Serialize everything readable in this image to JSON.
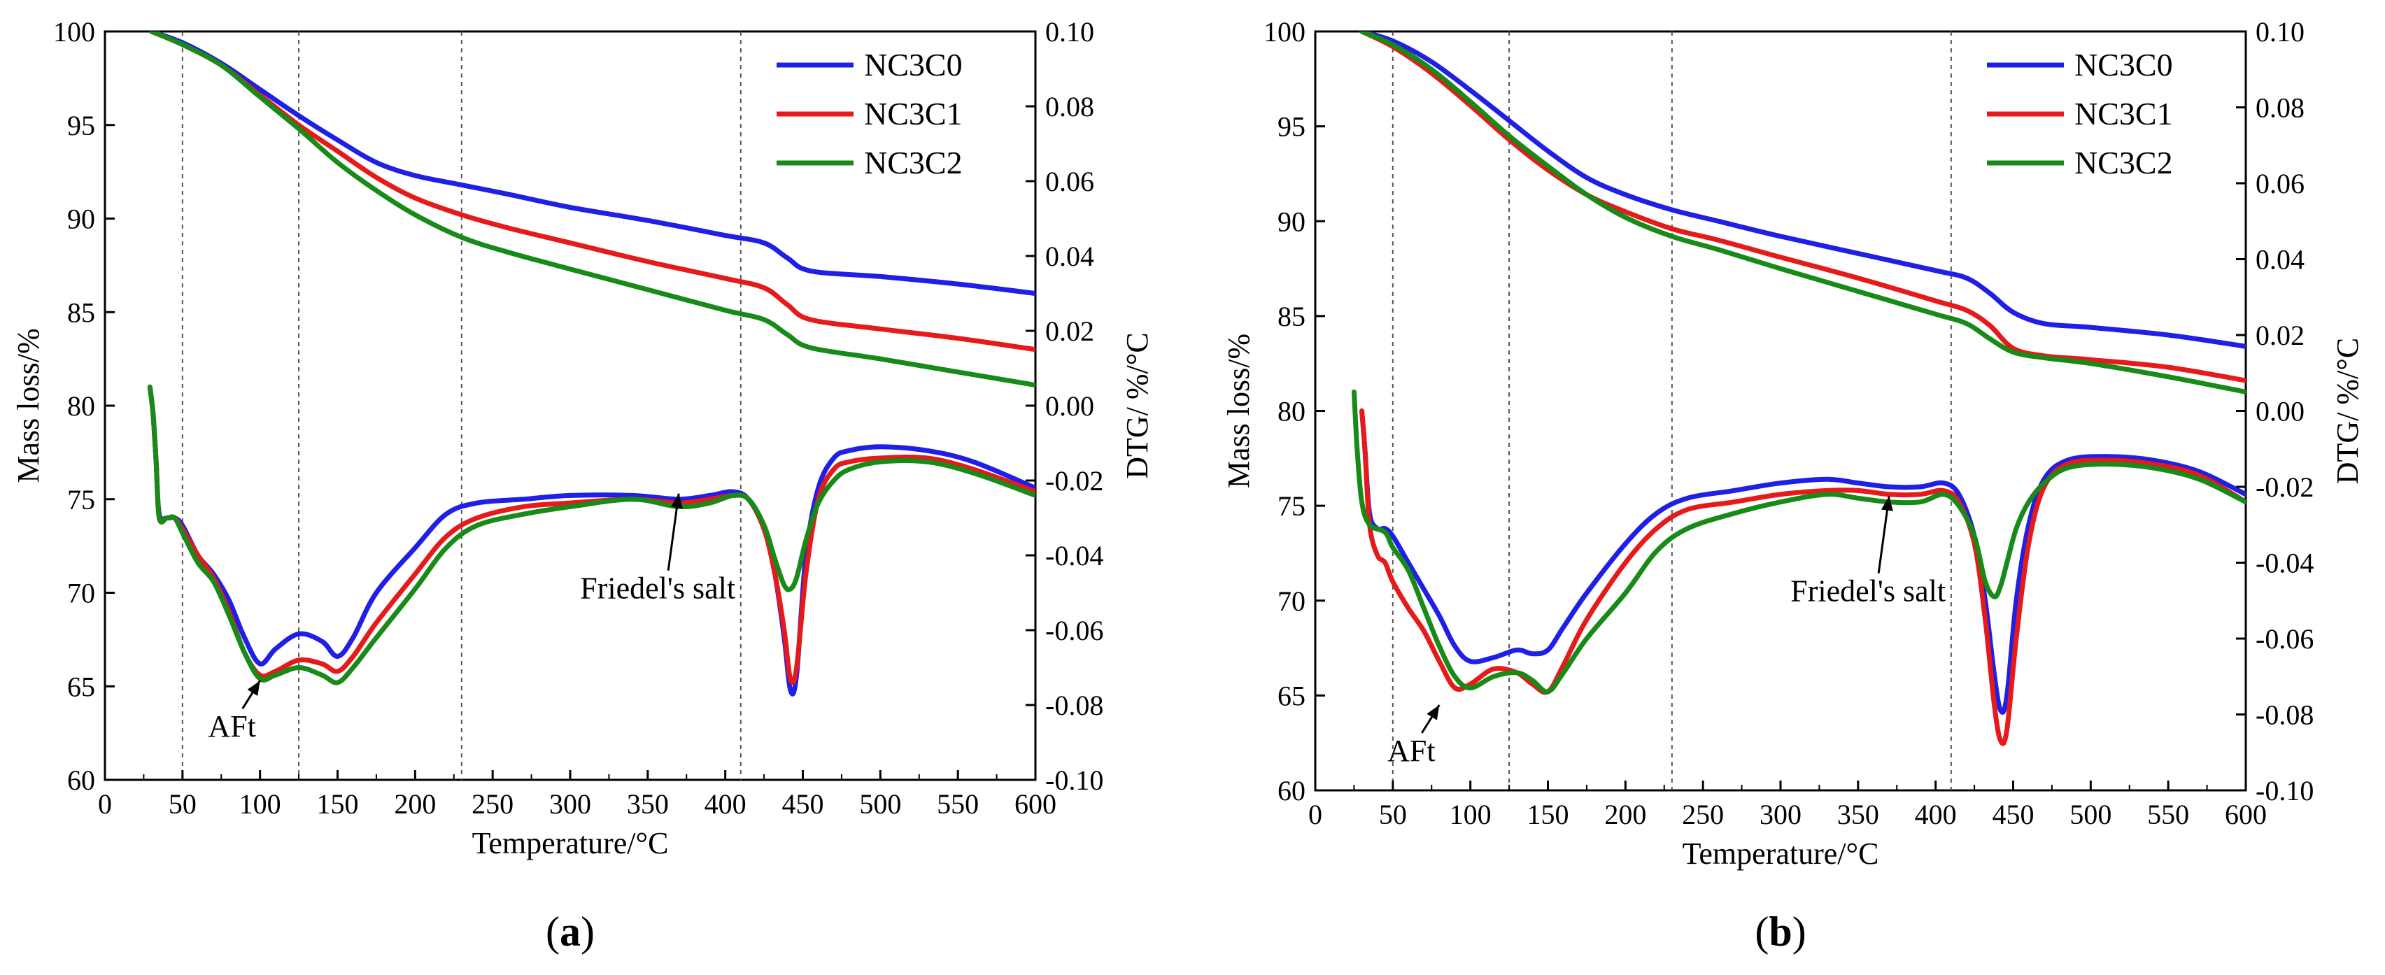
{
  "chart_data": [
    {
      "type": "line",
      "panel_label": "a",
      "xlabel": "Temperature/°C",
      "ylabel": "Mass loss/%",
      "y2label": "DTG/ %/°C",
      "xlim": [
        0,
        600
      ],
      "ylim": [
        60,
        100
      ],
      "y2lim": [
        -0.1,
        0.1
      ],
      "xticks": [
        "0",
        "50",
        "100",
        "150",
        "200",
        "250",
        "300",
        "350",
        "400",
        "450",
        "500",
        "550",
        "600"
      ],
      "yticks": [
        "60",
        "65",
        "70",
        "75",
        "80",
        "85",
        "90",
        "95",
        "100"
      ],
      "y2ticks": [
        "-0.10",
        "-0.08",
        "-0.06",
        "-0.04",
        "-0.02",
        "0.00",
        "0.02",
        "0.04",
        "0.06",
        "0.08",
        "0.10"
      ],
      "vlines": [
        50,
        125,
        230,
        410
      ],
      "legend": {
        "placement": "top-right",
        "entries": [
          "NC3C0",
          "NC3C1",
          "NC3C2"
        ]
      },
      "annotations": [
        {
          "text": "AFt",
          "x": 100,
          "y": 65.3
        },
        {
          "text": "Friedel's salt",
          "x": 370,
          "y": 75.3
        }
      ],
      "series": [
        {
          "name": "NC3C0",
          "color": "#1f1fe6",
          "axis": "mass",
          "x": [
            30,
            50,
            75,
            100,
            125,
            150,
            175,
            200,
            230,
            260,
            300,
            350,
            400,
            425,
            440,
            455,
            500,
            550,
            600
          ],
          "y": [
            100,
            99.4,
            98.3,
            96.9,
            95.5,
            94.2,
            93.0,
            92.3,
            91.8,
            91.3,
            90.6,
            89.9,
            89.1,
            88.7,
            87.9,
            87.2,
            86.9,
            86.5,
            86.0
          ]
        },
        {
          "name": "NC3C1",
          "color": "#e61a1a",
          "axis": "mass",
          "x": [
            30,
            50,
            75,
            100,
            125,
            150,
            175,
            200,
            230,
            260,
            300,
            350,
            400,
            425,
            440,
            455,
            500,
            550,
            600
          ],
          "y": [
            100,
            99.3,
            98.2,
            96.6,
            95.0,
            93.6,
            92.2,
            91.1,
            90.2,
            89.5,
            88.7,
            87.7,
            86.8,
            86.3,
            85.4,
            84.6,
            84.1,
            83.6,
            83.0
          ]
        },
        {
          "name": "NC3C2",
          "color": "#178a17",
          "axis": "mass",
          "x": [
            30,
            50,
            75,
            100,
            125,
            150,
            175,
            200,
            230,
            260,
            300,
            350,
            400,
            425,
            440,
            455,
            500,
            550,
            600
          ],
          "y": [
            100,
            99.3,
            98.2,
            96.5,
            94.8,
            93.0,
            91.5,
            90.2,
            89.0,
            88.2,
            87.3,
            86.2,
            85.1,
            84.6,
            83.8,
            83.1,
            82.5,
            81.8,
            81.1
          ]
        },
        {
          "name": "NC3C0",
          "color": "#1f1fe6",
          "axis": "dtg",
          "x": [
            29,
            31,
            33,
            35,
            40,
            45,
            50,
            60,
            70,
            80,
            90,
            100,
            110,
            125,
            140,
            150,
            160,
            175,
            200,
            220,
            240,
            270,
            300,
            340,
            370,
            390,
            405,
            415,
            425,
            432,
            438,
            442,
            446,
            452,
            460,
            470,
            480,
            500,
            530,
            560,
            600
          ],
          "y": [
            0.005,
            -0.002,
            -0.015,
            -0.029,
            -0.03,
            -0.03,
            -0.032,
            -0.04,
            -0.045,
            -0.052,
            -0.062,
            -0.069,
            -0.065,
            -0.061,
            -0.063,
            -0.067,
            -0.062,
            -0.05,
            -0.038,
            -0.029,
            -0.026,
            -0.025,
            -0.024,
            -0.024,
            -0.025,
            -0.024,
            -0.023,
            -0.025,
            -0.033,
            -0.045,
            -0.062,
            -0.076,
            -0.072,
            -0.04,
            -0.022,
            -0.014,
            -0.012,
            -0.011,
            -0.012,
            -0.015,
            -0.022
          ]
        },
        {
          "name": "NC3C1",
          "color": "#e61a1a",
          "axis": "dtg",
          "x": [
            29,
            31,
            33,
            35,
            40,
            45,
            50,
            60,
            70,
            80,
            90,
            100,
            110,
            125,
            140,
            150,
            160,
            175,
            200,
            220,
            240,
            270,
            300,
            340,
            370,
            390,
            405,
            415,
            425,
            432,
            438,
            442,
            446,
            452,
            460,
            470,
            480,
            500,
            530,
            560,
            600
          ],
          "y": [
            0.005,
            -0.002,
            -0.015,
            -0.03,
            -0.03,
            -0.03,
            -0.033,
            -0.04,
            -0.046,
            -0.055,
            -0.066,
            -0.072,
            -0.071,
            -0.068,
            -0.069,
            -0.071,
            -0.067,
            -0.058,
            -0.045,
            -0.035,
            -0.03,
            -0.027,
            -0.026,
            -0.025,
            -0.026,
            -0.025,
            -0.024,
            -0.025,
            -0.033,
            -0.045,
            -0.06,
            -0.073,
            -0.07,
            -0.045,
            -0.025,
            -0.017,
            -0.015,
            -0.014,
            -0.014,
            -0.017,
            -0.023
          ]
        },
        {
          "name": "NC3C2",
          "color": "#178a17",
          "axis": "dtg",
          "x": [
            29,
            31,
            33,
            35,
            40,
            45,
            50,
            60,
            70,
            80,
            90,
            100,
            110,
            125,
            140,
            150,
            160,
            175,
            200,
            220,
            240,
            270,
            300,
            340,
            370,
            390,
            405,
            415,
            425,
            432,
            438,
            442,
            446,
            452,
            460,
            470,
            480,
            500,
            530,
            560,
            600
          ],
          "y": [
            0.005,
            -0.002,
            -0.015,
            -0.03,
            -0.03,
            -0.03,
            -0.034,
            -0.042,
            -0.047,
            -0.056,
            -0.066,
            -0.073,
            -0.072,
            -0.07,
            -0.072,
            -0.074,
            -0.07,
            -0.062,
            -0.049,
            -0.038,
            -0.032,
            -0.029,
            -0.027,
            -0.025,
            -0.027,
            -0.026,
            -0.024,
            -0.025,
            -0.032,
            -0.041,
            -0.048,
            -0.049,
            -0.046,
            -0.036,
            -0.026,
            -0.02,
            -0.017,
            -0.015,
            -0.015,
            -0.018,
            -0.024
          ]
        }
      ]
    },
    {
      "type": "line",
      "panel_label": "b",
      "xlabel": "Temperature/°C",
      "ylabel": "Mass loss/%",
      "y2label": "DTG/ %/°C",
      "xlim": [
        0,
        600
      ],
      "ylim": [
        60,
        100
      ],
      "y2lim": [
        -0.1,
        0.1
      ],
      "xticks": [
        "0",
        "50",
        "100",
        "150",
        "200",
        "250",
        "300",
        "350",
        "400",
        "450",
        "500",
        "550",
        "600"
      ],
      "yticks": [
        "60",
        "65",
        "70",
        "75",
        "80",
        "85",
        "90",
        "95",
        "100"
      ],
      "y2ticks": [
        "-0.10",
        "-0.08",
        "-0.06",
        "-0.04",
        "-0.02",
        "0.00",
        "0.02",
        "0.04",
        "0.06",
        "0.08",
        "0.10"
      ],
      "vlines": [
        50,
        125,
        230,
        410
      ],
      "legend": {
        "placement": "top-right",
        "entries": [
          "NC3C0",
          "NC3C1",
          "NC3C2"
        ]
      },
      "annotations": [
        {
          "text": "AFt",
          "x": 80,
          "y": 64.5
        },
        {
          "text": "Friedel's salt",
          "x": 370,
          "y": 75.5
        }
      ],
      "series": [
        {
          "name": "NC3C0",
          "color": "#1f1fe6",
          "axis": "mass",
          "x": [
            30,
            50,
            75,
            100,
            125,
            150,
            175,
            200,
            230,
            260,
            300,
            350,
            400,
            420,
            435,
            450,
            470,
            500,
            550,
            600
          ],
          "y": [
            100,
            99.5,
            98.4,
            96.9,
            95.3,
            93.7,
            92.3,
            91.4,
            90.6,
            90.0,
            89.2,
            88.3,
            87.4,
            87.0,
            86.2,
            85.2,
            84.6,
            84.4,
            84.0,
            83.4
          ]
        },
        {
          "name": "NC3C1",
          "color": "#e61a1a",
          "axis": "mass",
          "x": [
            30,
            50,
            75,
            100,
            125,
            150,
            175,
            200,
            230,
            260,
            300,
            350,
            400,
            420,
            435,
            450,
            470,
            500,
            550,
            600
          ],
          "y": [
            100,
            99.2,
            97.8,
            96.1,
            94.3,
            92.7,
            91.4,
            90.5,
            89.6,
            89.0,
            88.1,
            87.0,
            85.8,
            85.3,
            84.5,
            83.3,
            82.9,
            82.7,
            82.3,
            81.6
          ]
        },
        {
          "name": "NC3C2",
          "color": "#178a17",
          "axis": "mass",
          "x": [
            30,
            50,
            75,
            100,
            125,
            150,
            175,
            200,
            230,
            260,
            300,
            350,
            400,
            420,
            435,
            450,
            470,
            500,
            550,
            600
          ],
          "y": [
            100,
            99.3,
            98.0,
            96.3,
            94.5,
            92.9,
            91.4,
            90.2,
            89.2,
            88.5,
            87.5,
            86.3,
            85.1,
            84.6,
            83.8,
            83.1,
            82.8,
            82.5,
            81.8,
            81.0
          ]
        },
        {
          "name": "NC3C0",
          "color": "#1f1fe6",
          "axis": "dtg",
          "x": [
            30,
            32,
            35,
            40,
            45,
            50,
            60,
            70,
            80,
            90,
            100,
            115,
            130,
            140,
            150,
            160,
            175,
            200,
            220,
            240,
            270,
            300,
            330,
            350,
            370,
            390,
            405,
            415,
            425,
            432,
            438,
            442,
            446,
            452,
            460,
            470,
            485,
            510,
            540,
            570,
            600
          ],
          "y": [
            0.0,
            -0.01,
            -0.027,
            -0.031,
            -0.031,
            -0.033,
            -0.04,
            -0.047,
            -0.054,
            -0.062,
            -0.066,
            -0.065,
            -0.063,
            -0.064,
            -0.063,
            -0.057,
            -0.048,
            -0.035,
            -0.027,
            -0.023,
            -0.021,
            -0.019,
            -0.018,
            -0.019,
            -0.02,
            -0.02,
            -0.019,
            -0.022,
            -0.033,
            -0.05,
            -0.07,
            -0.079,
            -0.075,
            -0.05,
            -0.03,
            -0.018,
            -0.013,
            -0.012,
            -0.013,
            -0.016,
            -0.022
          ]
        },
        {
          "name": "NC3C1",
          "color": "#e61a1a",
          "axis": "dtg",
          "x": [
            30,
            32,
            35,
            40,
            45,
            50,
            60,
            70,
            80,
            90,
            100,
            115,
            130,
            140,
            150,
            160,
            175,
            200,
            220,
            240,
            270,
            300,
            330,
            350,
            370,
            390,
            405,
            415,
            425,
            432,
            438,
            442,
            446,
            452,
            460,
            470,
            485,
            510,
            540,
            570,
            600
          ],
          "y": [
            0.0,
            -0.01,
            -0.03,
            -0.038,
            -0.04,
            -0.045,
            -0.052,
            -0.058,
            -0.066,
            -0.073,
            -0.072,
            -0.068,
            -0.069,
            -0.072,
            -0.074,
            -0.067,
            -0.055,
            -0.04,
            -0.031,
            -0.026,
            -0.024,
            -0.022,
            -0.021,
            -0.021,
            -0.022,
            -0.022,
            -0.021,
            -0.024,
            -0.035,
            -0.055,
            -0.078,
            -0.087,
            -0.084,
            -0.06,
            -0.035,
            -0.02,
            -0.014,
            -0.013,
            -0.014,
            -0.017,
            -0.024
          ]
        },
        {
          "name": "NC3C2",
          "color": "#178a17",
          "axis": "dtg",
          "x": [
            25,
            27,
            30,
            35,
            45,
            50,
            60,
            70,
            80,
            90,
            100,
            115,
            130,
            140,
            150,
            160,
            175,
            200,
            220,
            240,
            270,
            300,
            330,
            350,
            370,
            390,
            405,
            415,
            425,
            432,
            438,
            442,
            446,
            452,
            460,
            470,
            485,
            510,
            540,
            570,
            600
          ],
          "y": [
            0.005,
            -0.01,
            -0.024,
            -0.03,
            -0.032,
            -0.036,
            -0.042,
            -0.052,
            -0.062,
            -0.07,
            -0.073,
            -0.07,
            -0.069,
            -0.071,
            -0.074,
            -0.069,
            -0.06,
            -0.048,
            -0.037,
            -0.031,
            -0.027,
            -0.024,
            -0.022,
            -0.023,
            -0.024,
            -0.024,
            -0.022,
            -0.025,
            -0.033,
            -0.045,
            -0.049,
            -0.046,
            -0.04,
            -0.031,
            -0.024,
            -0.019,
            -0.015,
            -0.014,
            -0.015,
            -0.018,
            -0.024
          ]
        }
      ]
    }
  ]
}
